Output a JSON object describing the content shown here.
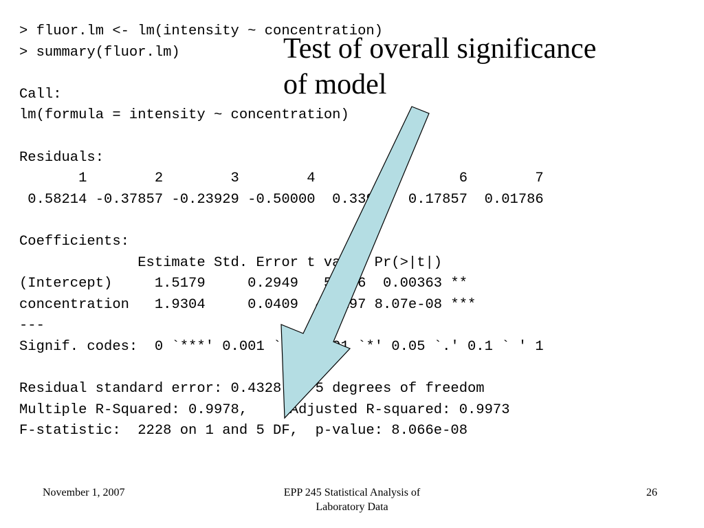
{
  "console": {
    "lines": [
      "> fluor.lm <- lm(intensity ~ concentration)",
      "> summary(fluor.lm)",
      "",
      "Call:",
      "lm(formula = intensity ~ concentration)",
      "",
      "Residuals:",
      "       1        2        3        4        5        6        7",
      " 0.58214 -0.37857 -0.23929 -0.50000  0.33929  0.17857  0.01786",
      "",
      "Coefficients:",
      "              Estimate Std. Error t value Pr(>|t|)",
      "(Intercept)     1.5179     0.2949   5.146  0.00363 **",
      "concentration   1.9304     0.0409  47.197 8.07e-08 ***",
      "---",
      "Signif. codes:  0 `***' 0.001 `**' 0.01 `*' 0.05 `.' 0.1 ` ' 1",
      "",
      "Residual standard error: 0.4328 on 5 degrees of freedom",
      "Multiple R-Squared: 0.9978,     Adjusted R-squared: 0.9973",
      "F-statistic:  2228 on 1 and 5 DF,  p-value: 8.066e-08"
    ]
  },
  "callout": {
    "line1": "Test of overall significance",
    "line2": "of model"
  },
  "arrow": {
    "fill_color": "#b4dde3",
    "stroke_color": "#000000"
  },
  "footer": {
    "date": "November 1, 2007",
    "course_line1": "EPP 245 Statistical Analysis of",
    "course_line2": "Laboratory Data",
    "page_number": "26"
  }
}
